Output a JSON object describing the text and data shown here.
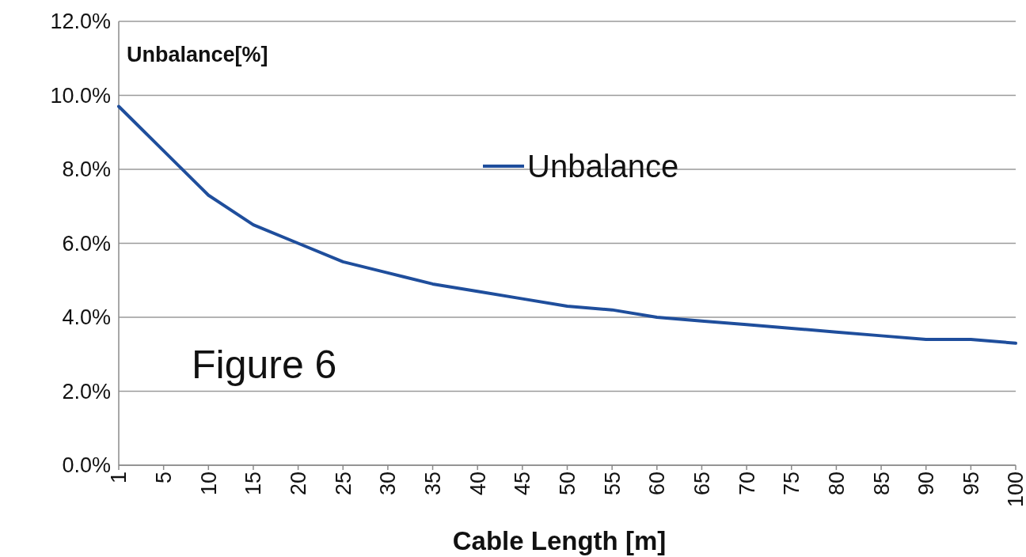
{
  "chart_data": {
    "type": "line",
    "xlabel": "Cable Length [m]",
    "ylabel": "Unbalance[%]",
    "categories": [
      "1",
      "5",
      "10",
      "15",
      "20",
      "25",
      "30",
      "35",
      "40",
      "45",
      "50",
      "55",
      "60",
      "65",
      "70",
      "75",
      "80",
      "85",
      "90",
      "95",
      "100"
    ],
    "series": [
      {
        "name": "Unbalance",
        "color": "#1f4e9c",
        "values": [
          9.7,
          8.5,
          7.3,
          6.5,
          6.0,
          5.5,
          5.2,
          4.9,
          4.7,
          4.5,
          4.3,
          4.2,
          4.0,
          3.9,
          3.8,
          3.7,
          3.6,
          3.5,
          3.4,
          3.4,
          3.3
        ]
      }
    ],
    "ylim": [
      0,
      12
    ],
    "yticks": [
      {
        "value": 0,
        "label": "0.0%"
      },
      {
        "value": 2,
        "label": "2.0%"
      },
      {
        "value": 4,
        "label": "4.0%"
      },
      {
        "value": 6,
        "label": "6.0%"
      },
      {
        "value": 8,
        "label": "8.0%"
      },
      {
        "value": 10,
        "label": "10.0%"
      },
      {
        "value": 12,
        "label": "12.0%"
      }
    ],
    "grid": "y",
    "legend": "top",
    "marker": "none",
    "line_style": "solid",
    "annotations": [
      "Figure 6"
    ]
  }
}
